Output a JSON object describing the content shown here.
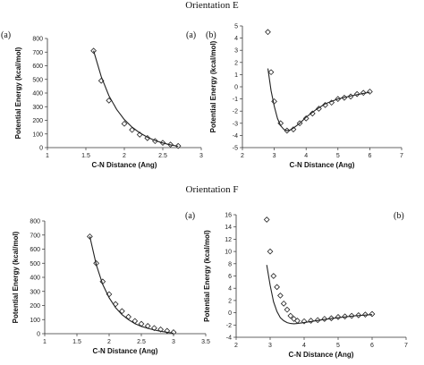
{
  "headers": {
    "orientation_e": "Orientation E",
    "orientation_f": "Orientation F"
  },
  "panel_labels": {
    "e_left_outer": "(a)",
    "e_left_inner": "(a)",
    "e_right": "(b)",
    "f_left": "(a)",
    "f_right": "(b)"
  },
  "chart_data": [
    {
      "type": "scatter",
      "xlabel": "C-N Distance (Ang)",
      "ylabel": "Potential Energy (kcal/mol)",
      "xlim": [
        1,
        3
      ],
      "ylim": [
        0,
        800
      ],
      "xticks": [
        1,
        1.5,
        2,
        2.5,
        3
      ],
      "yticks": [
        0,
        100,
        200,
        300,
        400,
        500,
        600,
        700,
        800
      ],
      "series": [
        {
          "x": [
            1.6,
            1.7,
            1.8,
            2.0,
            2.1,
            2.2,
            2.3,
            2.4,
            2.5,
            2.6,
            2.7
          ],
          "y": [
            710,
            490,
            345,
            175,
            130,
            95,
            70,
            48,
            35,
            22,
            12
          ],
          "marker": "diamond"
        },
        {
          "x": [
            1.6,
            1.7,
            1.8,
            1.9,
            2.0,
            2.1,
            2.2,
            2.3,
            2.4,
            2.5,
            2.6,
            2.7
          ],
          "y": [
            710,
            520,
            380,
            280,
            205,
            150,
            108,
            76,
            52,
            34,
            20,
            10
          ],
          "style": "line"
        }
      ]
    },
    {
      "type": "scatter",
      "xlabel": "C-N Distance (Ang)",
      "ylabel": "Potential Energy (kcal/mol)",
      "xlim": [
        2,
        7
      ],
      "ylim": [
        -5,
        5
      ],
      "xticks": [
        2,
        3,
        4,
        5,
        6,
        7
      ],
      "yticks": [
        -5,
        -4,
        -3,
        -2,
        -1,
        0,
        1,
        2,
        3,
        4,
        5
      ],
      "series": [
        {
          "x": [
            2.8,
            2.9,
            3.0,
            3.2,
            3.4,
            3.6,
            3.8,
            4.0,
            4.2,
            4.4,
            4.6,
            4.8,
            5.0,
            5.2,
            5.4,
            5.6,
            5.8,
            6.0
          ],
          "y": [
            4.5,
            1.2,
            -1.2,
            -3.0,
            -3.6,
            -3.5,
            -3.0,
            -2.6,
            -2.2,
            -1.8,
            -1.5,
            -1.3,
            -1.0,
            -0.9,
            -0.8,
            -0.6,
            -0.5,
            -0.4
          ],
          "marker": "diamond"
        },
        {
          "x": [
            2.8,
            2.9,
            3.0,
            3.1,
            3.2,
            3.3,
            3.4,
            3.5,
            3.6,
            3.8,
            4.0,
            4.3,
            4.6,
            5.0,
            5.5,
            6.0
          ],
          "y": [
            1.5,
            -0.3,
            -1.6,
            -2.6,
            -3.2,
            -3.5,
            -3.6,
            -3.55,
            -3.4,
            -3.0,
            -2.5,
            -1.9,
            -1.4,
            -1.0,
            -0.7,
            -0.45
          ],
          "style": "line"
        }
      ]
    },
    {
      "type": "scatter",
      "xlabel": "C-N Distance (Ang)",
      "ylabel": "Potential Energy (kcal/mol)",
      "xlim": [
        1,
        3.5
      ],
      "ylim": [
        0,
        800
      ],
      "xticks": [
        1,
        1.5,
        2,
        2.5,
        3,
        3.5
      ],
      "yticks": [
        0,
        100,
        200,
        300,
        400,
        500,
        600,
        700,
        800
      ],
      "series": [
        {
          "x": [
            1.7,
            1.8,
            1.9,
            2.0,
            2.1,
            2.2,
            2.3,
            2.4,
            2.5,
            2.6,
            2.7,
            2.8,
            2.9,
            3.0
          ],
          "y": [
            690,
            500,
            370,
            280,
            210,
            160,
            120,
            90,
            70,
            55,
            40,
            30,
            20,
            10
          ],
          "marker": "diamond"
        },
        {
          "x": [
            1.7,
            1.8,
            1.9,
            2.0,
            2.1,
            2.2,
            2.3,
            2.4,
            2.5,
            2.6,
            2.7,
            2.8,
            2.9,
            3.0
          ],
          "y": [
            690,
            490,
            350,
            255,
            185,
            135,
            100,
            72,
            52,
            38,
            26,
            17,
            10,
            3
          ],
          "style": "line"
        }
      ]
    },
    {
      "type": "scatter",
      "xlabel": "C-N Distance (Ang)",
      "ylabel": "Potential Energy (kcal/mol)",
      "xlim": [
        2,
        7
      ],
      "ylim": [
        -4,
        16
      ],
      "xticks": [
        2,
        3,
        4,
        5,
        6,
        7
      ],
      "yticks": [
        -4,
        -2,
        0,
        2,
        4,
        6,
        8,
        10,
        12,
        14,
        16
      ],
      "series": [
        {
          "x": [
            2.9,
            3.0,
            3.1,
            3.2,
            3.3,
            3.4,
            3.5,
            3.6,
            3.7,
            3.8,
            4.0,
            4.2,
            4.4,
            4.6,
            4.8,
            5.0,
            5.2,
            5.4,
            5.6,
            5.8,
            6.0
          ],
          "y": [
            15.2,
            10.0,
            6.0,
            4.2,
            2.8,
            1.5,
            0.5,
            -0.5,
            -1.0,
            -1.3,
            -1.4,
            -1.3,
            -1.2,
            -1.0,
            -0.9,
            -0.7,
            -0.6,
            -0.5,
            -0.4,
            -0.3,
            -0.2
          ],
          "marker": "diamond"
        },
        {
          "x": [
            2.9,
            3.0,
            3.1,
            3.2,
            3.3,
            3.4,
            3.5,
            3.6,
            3.7,
            3.8,
            4.0,
            4.3,
            4.6,
            5.0,
            5.5,
            6.0
          ],
          "y": [
            7.8,
            4.5,
            1.8,
            0.2,
            -0.8,
            -1.3,
            -1.6,
            -1.75,
            -1.8,
            -1.75,
            -1.6,
            -1.35,
            -1.1,
            -0.8,
            -0.5,
            -0.3
          ],
          "style": "line"
        }
      ]
    }
  ]
}
